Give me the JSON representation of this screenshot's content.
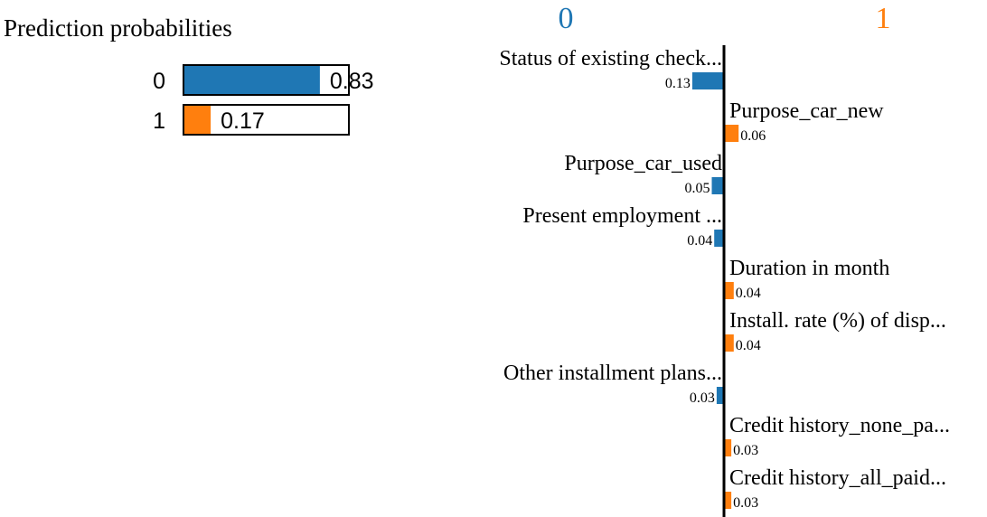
{
  "colors": {
    "class_0": "#1f77b4",
    "class_1": "#ff7f0e"
  },
  "chart_data": [
    {
      "type": "bar",
      "title": "Prediction probabilities",
      "orientation": "horizontal",
      "categories": [
        "0",
        "1"
      ],
      "values": [
        0.83,
        0.17
      ],
      "value_labels": [
        "0.83",
        "0.17"
      ],
      "xlim": [
        0,
        1
      ]
    },
    {
      "type": "bar",
      "orientation": "horizontal",
      "class_headers": [
        "0",
        "1"
      ],
      "features": [
        {
          "label": "Status of existing check...",
          "value": 0.13,
          "value_label": "0.13",
          "class": "0"
        },
        {
          "label": "Purpose_car_new",
          "value": 0.06,
          "value_label": "0.06",
          "class": "1"
        },
        {
          "label": "Purpose_car_used",
          "value": 0.05,
          "value_label": "0.05",
          "class": "0"
        },
        {
          "label": "Present employment ...",
          "value": 0.04,
          "value_label": "0.04",
          "class": "0"
        },
        {
          "label": "Duration in month",
          "value": 0.04,
          "value_label": "0.04",
          "class": "1"
        },
        {
          "label": "Install. rate (%) of disp...",
          "value": 0.04,
          "value_label": "0.04",
          "class": "1"
        },
        {
          "label": "Other installment plans...",
          "value": 0.03,
          "value_label": "0.03",
          "class": "0"
        },
        {
          "label": "Credit history_none_pa...",
          "value": 0.03,
          "value_label": "0.03",
          "class": "1"
        },
        {
          "label": "Credit history_all_paid...",
          "value": 0.03,
          "value_label": "0.03",
          "class": "1"
        }
      ]
    }
  ]
}
